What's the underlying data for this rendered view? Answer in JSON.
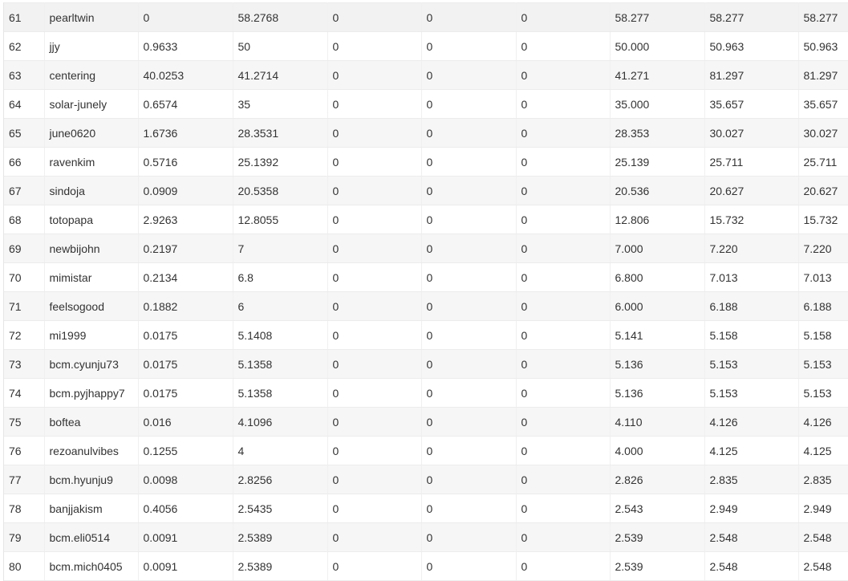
{
  "table": {
    "rows": [
      [
        "61",
        "pearltwin",
        "0",
        "58.2768",
        "0",
        "0",
        "0",
        "58.277",
        "58.277",
        "58.277"
      ],
      [
        "62",
        "jjy",
        "0.9633",
        "50",
        "0",
        "0",
        "0",
        "50.000",
        "50.963",
        "50.963"
      ],
      [
        "63",
        "centering",
        "40.0253",
        "41.2714",
        "0",
        "0",
        "0",
        "41.271",
        "81.297",
        "81.297"
      ],
      [
        "64",
        "solar-junely",
        "0.6574",
        "35",
        "0",
        "0",
        "0",
        "35.000",
        "35.657",
        "35.657"
      ],
      [
        "65",
        "june0620",
        "1.6736",
        "28.3531",
        "0",
        "0",
        "0",
        "28.353",
        "30.027",
        "30.027"
      ],
      [
        "66",
        "ravenkim",
        "0.5716",
        "25.1392",
        "0",
        "0",
        "0",
        "25.139",
        "25.711",
        "25.711"
      ],
      [
        "67",
        "sindoja",
        "0.0909",
        "20.5358",
        "0",
        "0",
        "0",
        "20.536",
        "20.627",
        "20.627"
      ],
      [
        "68",
        "totopapa",
        "2.9263",
        "12.8055",
        "0",
        "0",
        "0",
        "12.806",
        "15.732",
        "15.732"
      ],
      [
        "69",
        "newbijohn",
        "0.2197",
        "7",
        "0",
        "0",
        "0",
        "7.000",
        "7.220",
        "7.220"
      ],
      [
        "70",
        "mimistar",
        "0.2134",
        "6.8",
        "0",
        "0",
        "0",
        "6.800",
        "7.013",
        "7.013"
      ],
      [
        "71",
        "feelsogood",
        "0.1882",
        "6",
        "0",
        "0",
        "0",
        "6.000",
        "6.188",
        "6.188"
      ],
      [
        "72",
        "mi1999",
        "0.0175",
        "5.1408",
        "0",
        "0",
        "0",
        "5.141",
        "5.158",
        "5.158"
      ],
      [
        "73",
        "bcm.cyunju73",
        "0.0175",
        "5.1358",
        "0",
        "0",
        "0",
        "5.136",
        "5.153",
        "5.153"
      ],
      [
        "74",
        "bcm.pyjhappy7",
        "0.0175",
        "5.1358",
        "0",
        "0",
        "0",
        "5.136",
        "5.153",
        "5.153"
      ],
      [
        "75",
        "boftea",
        "0.016",
        "4.1096",
        "0",
        "0",
        "0",
        "4.110",
        "4.126",
        "4.126"
      ],
      [
        "76",
        "rezoanulvibes",
        "0.1255",
        "4",
        "0",
        "0",
        "0",
        "4.000",
        "4.125",
        "4.125"
      ],
      [
        "77",
        "bcm.hyunju9",
        "0.0098",
        "2.8256",
        "0",
        "0",
        "0",
        "2.826",
        "2.835",
        "2.835"
      ],
      [
        "78",
        "banjjakism",
        "0.4056",
        "2.5435",
        "0",
        "0",
        "0",
        "2.543",
        "2.949",
        "2.949"
      ],
      [
        "79",
        "bcm.eli0514",
        "0.0091",
        "2.5389",
        "0",
        "0",
        "0",
        "2.539",
        "2.548",
        "2.548"
      ],
      [
        "80",
        "bcm.mich0405",
        "0.0091",
        "2.5389",
        "0",
        "0",
        "0",
        "2.539",
        "2.548",
        "2.548"
      ]
    ]
  }
}
